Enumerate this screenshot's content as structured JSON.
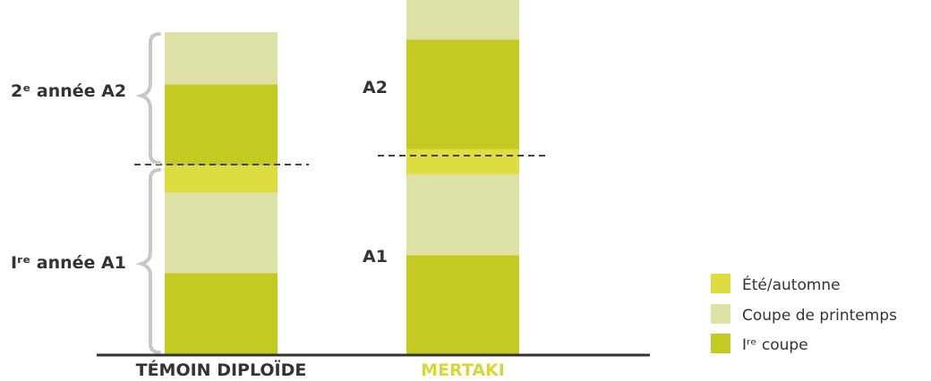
{
  "chart_data": {
    "type": "bar",
    "stacked": true,
    "categories": [
      "TÉMOIN DIPLOÏDE",
      "MERTAKI"
    ],
    "series": [
      {
        "name": "Iʳᵉ coupe",
        "color": "#c3cb22",
        "values": [
          [
            90,
            90
          ],
          [
            110,
            122
          ]
        ]
      },
      {
        "name": "Coupe de printemps",
        "color": "#dde1a5",
        "values": [
          [
            90,
            58
          ],
          [
            90,
            60
          ]
        ]
      },
      {
        "name": "Été/automne",
        "color": "#dedd3f",
        "values": [
          [
            30,
            0
          ],
          [
            28,
            10
          ]
        ]
      }
    ],
    "segments_order": [
      "Iʳᵉ coupe",
      "Coupe de printemps",
      "Été/automne"
    ],
    "period_labels": {
      "bar0": [
        "Iʳᵉ année A1",
        "2ᵉ année A2"
      ],
      "bar1": [
        "A1",
        "A2"
      ]
    },
    "ylim": [
      0,
      380
    ],
    "grid": false,
    "legend": "right"
  },
  "legend": {
    "items": [
      {
        "label": "Été/automne",
        "color": "#dedd3f"
      },
      {
        "label": "Coupe de printemps",
        "color": "#dde1a5"
      },
      {
        "label": "Iʳᵉ coupe",
        "color": "#c3cb22"
      }
    ]
  },
  "labels": {
    "temoin_a2": "2ᵉ année A2",
    "temoin_a1": "Iʳᵉ année A1",
    "mertaki_a2": "A2",
    "mertaki_a1": "A1"
  },
  "colors": {
    "axis": "#333333",
    "brace": "#c8c8c8",
    "temoin_label": "#333333",
    "mertaki_label": "#d4d63a"
  }
}
